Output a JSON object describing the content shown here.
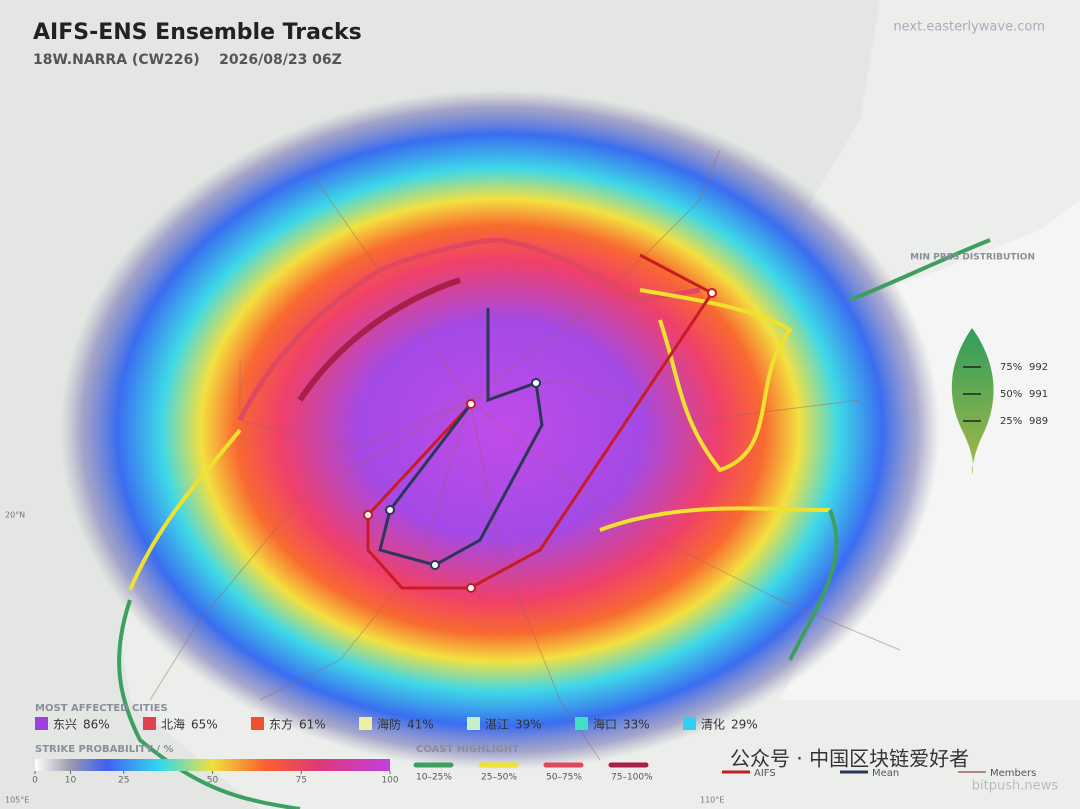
{
  "header": {
    "title": "AIFS-ENS Ensemble Tracks",
    "subtitle": "18W.NARRA (CW226)    2026/08/23 06Z",
    "source": "next.easterlywave.com"
  },
  "grid_labels": {
    "lat": "20°N",
    "lon_west": "105°E",
    "lon_east": "110°E"
  },
  "min_pres": {
    "title": "MIN PRES DISTRIBUTION",
    "rows": [
      {
        "pct": "75%",
        "value": "992"
      },
      {
        "pct": "50%",
        "value": "991"
      },
      {
        "pct": "25%",
        "value": "989"
      }
    ]
  },
  "cities": {
    "title": "MOST AFFECTED CITIES",
    "items": [
      {
        "name": "东兴",
        "pct": "86%"
      },
      {
        "name": "北海",
        "pct": "65%"
      },
      {
        "name": "东方",
        "pct": "61%"
      },
      {
        "name": "海防",
        "pct": "41%"
      },
      {
        "name": "湛江",
        "pct": "39%"
      },
      {
        "name": "海口",
        "pct": "33%"
      },
      {
        "name": "清化",
        "pct": "29%"
      }
    ]
  },
  "strike": {
    "title": "STRIKE PROBABILITY / %",
    "ticks": [
      0,
      10,
      25,
      50,
      75,
      100
    ]
  },
  "coast": {
    "title": "COAST HIGHLIGHT",
    "items": [
      "10–25%",
      "25–50%",
      "50–75%",
      "75–100%"
    ]
  },
  "tracks": {
    "items": [
      "AIFS",
      "Mean",
      "Members"
    ]
  },
  "watermark": {
    "wechat": "公众号 · 中国区块链爱好者",
    "site": "bitpush.news"
  }
}
